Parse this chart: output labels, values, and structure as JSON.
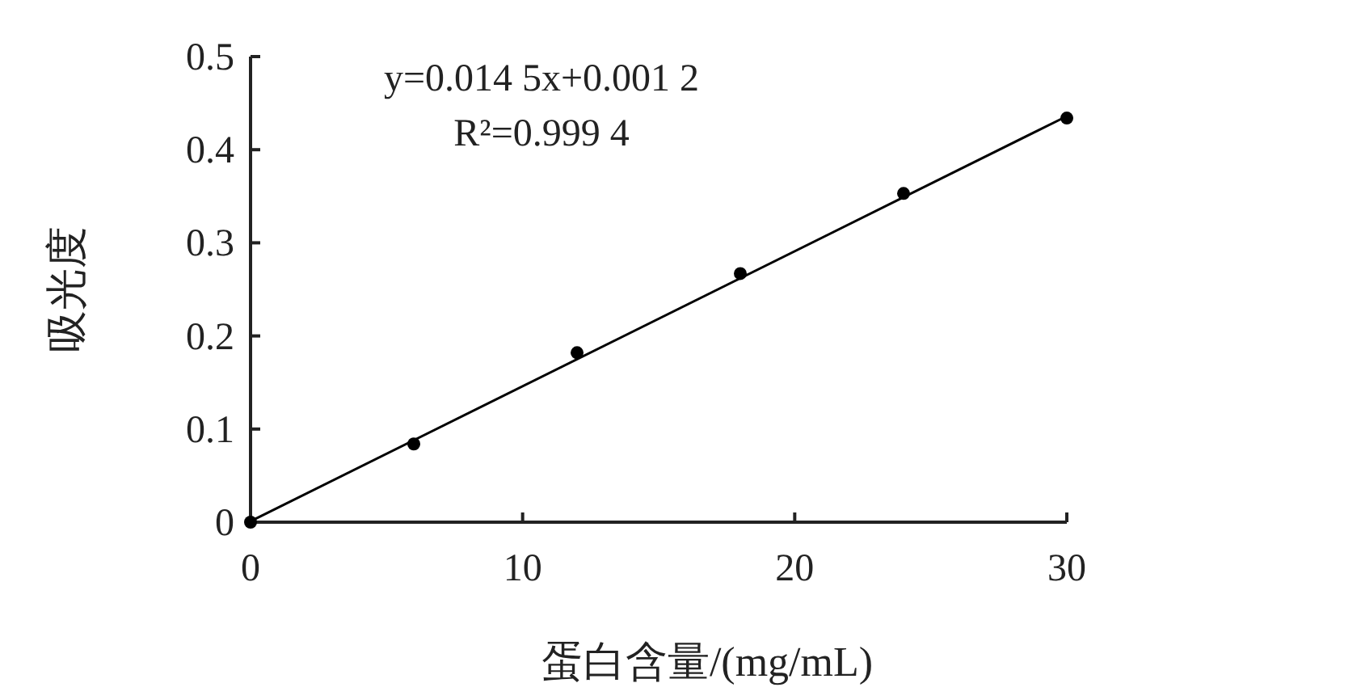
{
  "chart_data": {
    "type": "scatter",
    "xlabel": "蛋白含量/(mg/mL)",
    "ylabel": "吸光度",
    "series": [
      {
        "type": "scatter",
        "color": "#000000",
        "marker": "circle",
        "x": [
          0,
          6,
          12,
          18,
          24,
          30
        ],
        "values": [
          0,
          0.084,
          0.182,
          0.267,
          0.353,
          0.434
        ]
      },
      {
        "type": "line",
        "color": "#000000",
        "x": [
          0,
          30
        ],
        "values": [
          0.001,
          0.436
        ]
      }
    ],
    "annotations": [
      "y=0.014 5x+0.001 2",
      "R²=0.999 4"
    ],
    "xlim": [
      0,
      30
    ],
    "ylim": [
      0,
      0.5
    ],
    "xticks": [
      0,
      10,
      20,
      30
    ],
    "yticks": [
      0,
      0.1,
      0.2,
      0.3,
      0.4,
      0.5
    ],
    "grid": false
  }
}
